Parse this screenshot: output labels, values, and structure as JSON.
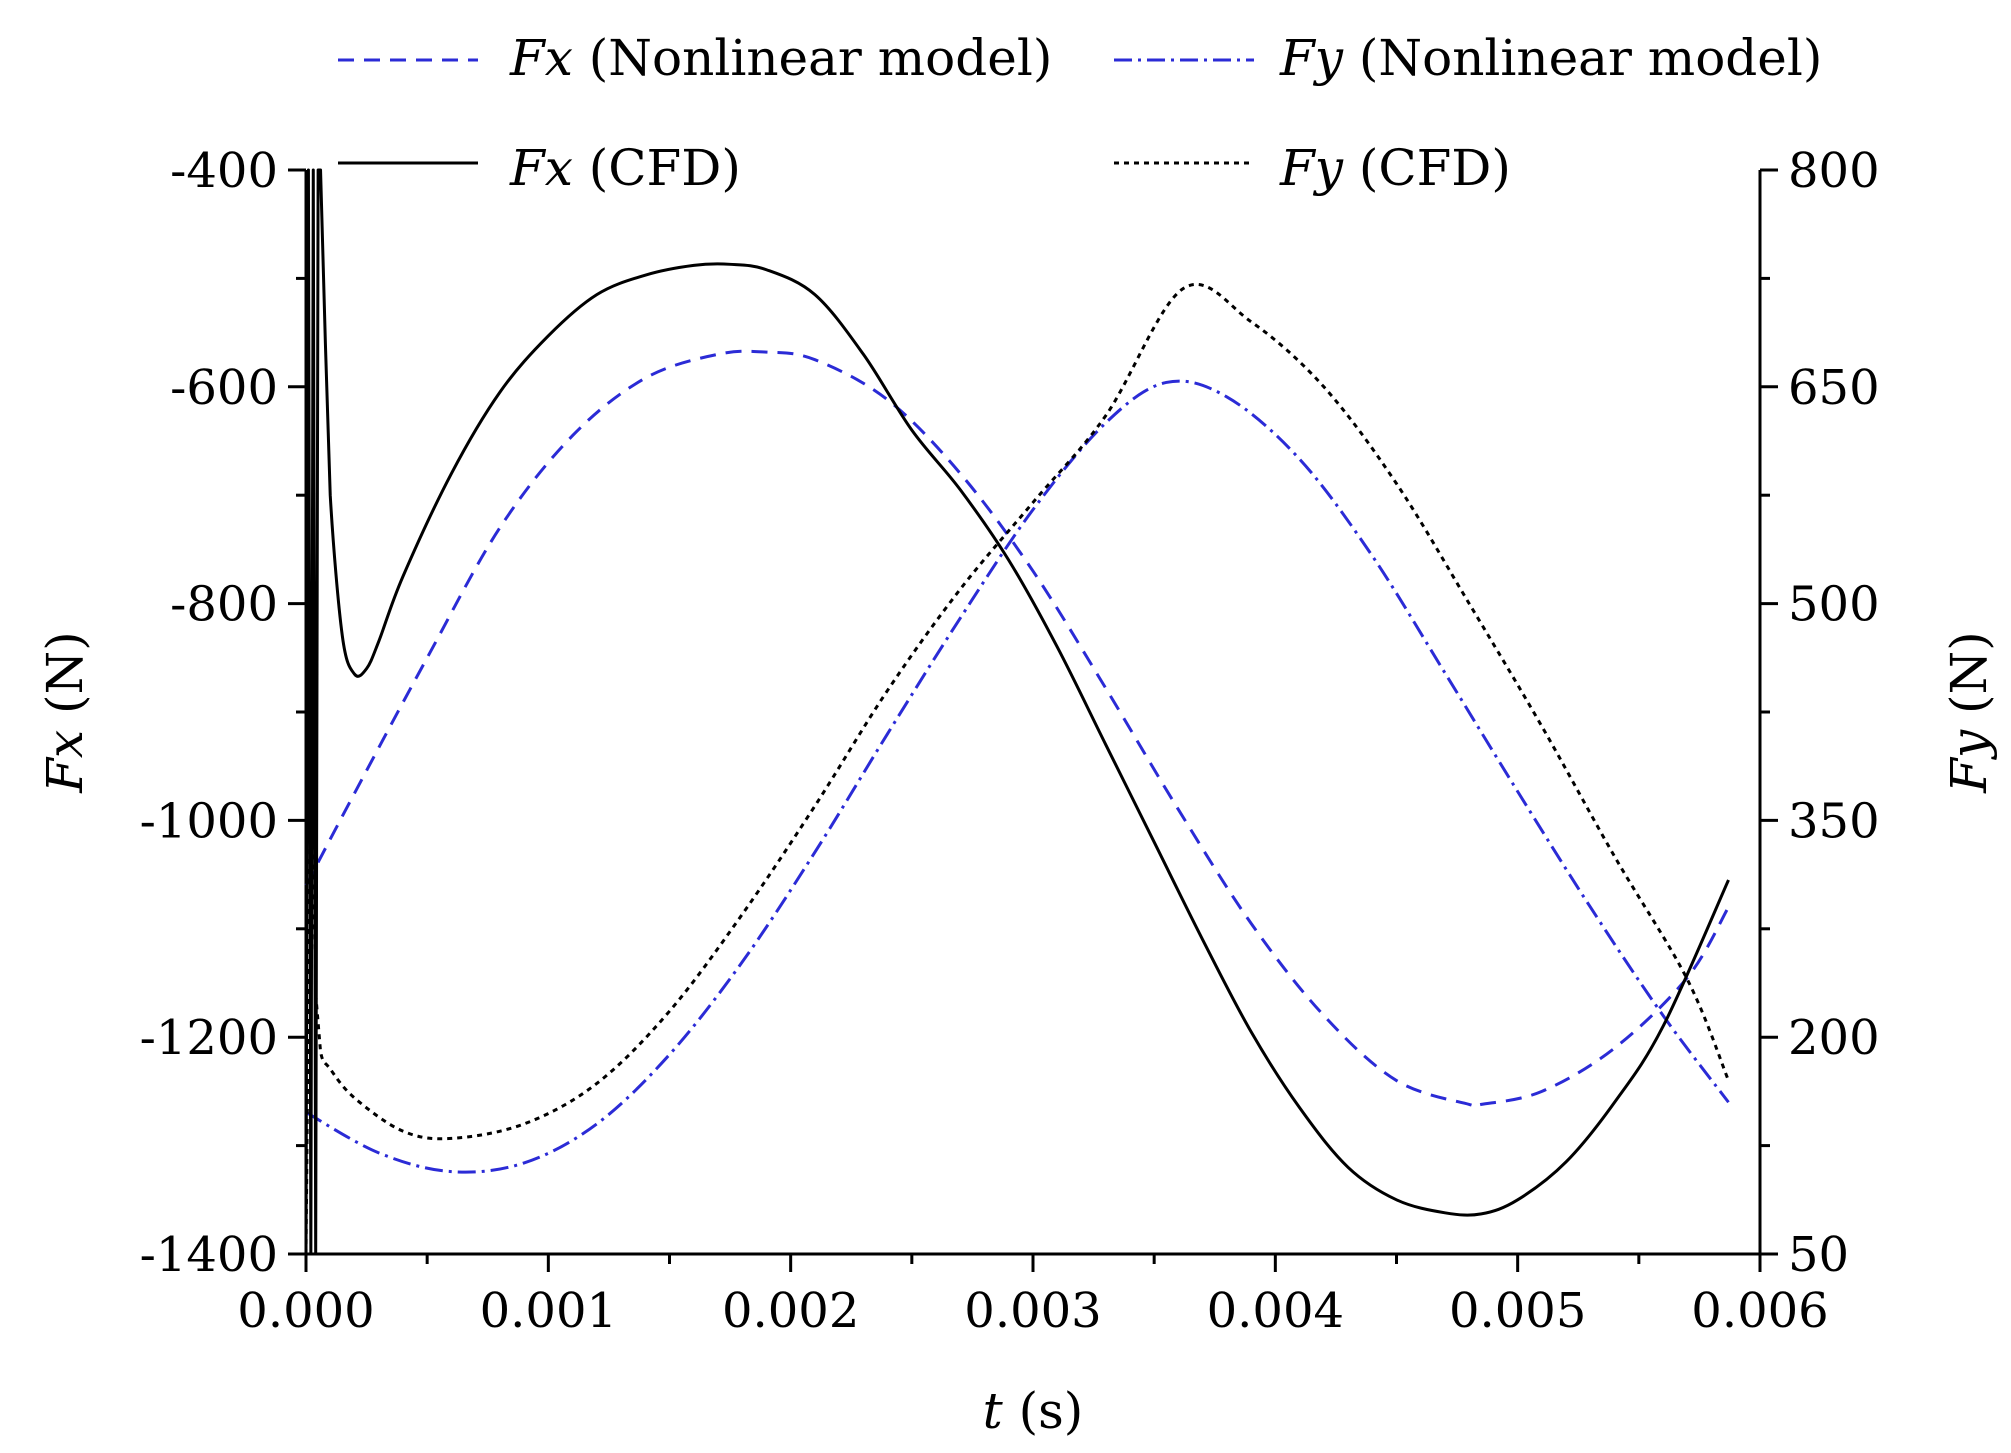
{
  "chart_data": {
    "type": "line",
    "x_axis": {
      "label_var": "t",
      "label_unit": " (s)",
      "range": [
        0,
        0.006
      ],
      "ticks": [
        0,
        0.001,
        0.002,
        0.003,
        0.004,
        0.005,
        0.006
      ],
      "tick_labels": [
        "0.000",
        "0.001",
        "0.002",
        "0.003",
        "0.004",
        "0.005",
        "0.006"
      ],
      "minor_ticks": [
        0.0005,
        0.0015,
        0.0025,
        0.0035,
        0.0045,
        0.0055
      ]
    },
    "y_left": {
      "label_var": "Fx",
      "label_unit": " (N)",
      "range": [
        -1400,
        -400
      ],
      "ticks": [
        -1400,
        -1200,
        -1000,
        -800,
        -600,
        -400
      ],
      "tick_labels": [
        "-1400",
        "-1200",
        "-1000",
        "-800",
        "-600",
        "-400"
      ],
      "minor_ticks": [
        -1300,
        -1100,
        -900,
        -700,
        -500
      ]
    },
    "y_right": {
      "label_var": "Fy",
      "label_unit": " (N)",
      "range": [
        50,
        800
      ],
      "ticks": [
        50,
        200,
        350,
        500,
        650,
        800
      ],
      "tick_labels": [
        "50",
        "200",
        "350",
        "500",
        "650",
        "800"
      ],
      "minor_ticks": [
        125,
        275,
        425,
        575,
        725
      ]
    },
    "series": [
      {
        "id": "fx-nonlinear",
        "name_var": "Fx",
        "name_rest": " (Nonlinear model)",
        "axis": "left",
        "color": "#2b2bd6",
        "dash": "16 10",
        "x": [
          0,
          0.0002,
          0.0005,
          0.0008,
          0.0011,
          0.0014,
          0.0017,
          0.0019,
          0.0021,
          0.0024,
          0.0027,
          0.003,
          0.0033,
          0.0036,
          0.0039,
          0.0042,
          0.0045,
          0.0048,
          0.00485,
          0.0051,
          0.0054,
          0.0057,
          0.00587
        ],
        "values": [
          -1060,
          -975,
          -850,
          -730,
          -645,
          -592,
          -570,
          -568,
          -575,
          -612,
          -680,
          -770,
          -878,
          -990,
          -1095,
          -1180,
          -1240,
          -1262,
          -1262,
          -1250,
          -1210,
          -1145,
          -1080
        ]
      },
      {
        "id": "fy-nonlinear",
        "name_var": "Fy",
        "name_rest": " (Nonlinear model)",
        "axis": "right",
        "color": "#2b2bd6",
        "dash": "18 6 3 6",
        "x": [
          0,
          0.0003,
          0.0006,
          0.0009,
          0.0012,
          0.0015,
          0.0018,
          0.0021,
          0.0024,
          0.0027,
          0.003,
          0.0033,
          0.00355,
          0.0038,
          0.0041,
          0.0044,
          0.0047,
          0.005,
          0.0053,
          0.0056,
          0.00587
        ],
        "values": [
          148,
          120,
          107,
          113,
          140,
          188,
          252,
          328,
          410,
          490,
          565,
          625,
          653,
          643,
          600,
          533,
          452,
          370,
          290,
          215,
          155
        ]
      },
      {
        "id": "fx-cfd",
        "name_var": "Fx",
        "name_rest": " (CFD)",
        "axis": "left",
        "color": "#000000",
        "dash": "none",
        "x": [
          0,
          1e-05,
          2e-05,
          3e-05,
          4e-05,
          5e-05,
          6e-05,
          8e-05,
          0.0001,
          0.00015,
          0.0002,
          0.00025,
          0.0003,
          0.0004,
          0.0006,
          0.0008,
          0.001,
          0.0012,
          0.0014,
          0.0016,
          0.00175,
          0.0019,
          0.0021,
          0.0023,
          0.0025,
          0.0027,
          0.0029,
          0.0031,
          0.0033,
          0.0035,
          0.0037,
          0.0039,
          0.0041,
          0.0043,
          0.0045,
          0.0047,
          0.00485,
          0.005,
          0.0052,
          0.0054,
          0.0056,
          0.00587
        ],
        "values": [
          -1400,
          -400,
          -1400,
          -400,
          -1400,
          -400,
          -400,
          -560,
          -700,
          -830,
          -865,
          -860,
          -835,
          -775,
          -680,
          -605,
          -553,
          -515,
          -497,
          -488,
          -487,
          -492,
          -515,
          -570,
          -640,
          -695,
          -760,
          -840,
          -930,
          -1020,
          -1110,
          -1195,
          -1265,
          -1320,
          -1350,
          -1362,
          -1363,
          -1350,
          -1315,
          -1260,
          -1190,
          -1055
        ]
      },
      {
        "id": "fy-cfd",
        "name_var": "Fy",
        "name_rest": " (CFD)",
        "axis": "right",
        "color": "#000000",
        "dash": "5 5",
        "x": [
          0,
          2e-05,
          4e-05,
          6e-05,
          0.0001,
          0.0002,
          0.0004,
          0.0006,
          0.0009,
          0.0012,
          0.0015,
          0.0018,
          0.0021,
          0.0024,
          0.0027,
          0.003,
          0.0033,
          0.00362,
          0.0039,
          0.0042,
          0.0045,
          0.0048,
          0.0051,
          0.0054,
          0.0057,
          0.00587
        ],
        "values": [
          50,
          420,
          230,
          190,
          178,
          158,
          135,
          130,
          140,
          168,
          218,
          285,
          360,
          440,
          510,
          570,
          630,
          718,
          695,
          650,
          583,
          500,
          415,
          325,
          240,
          170
        ]
      }
    ],
    "legend_position": "top"
  }
}
